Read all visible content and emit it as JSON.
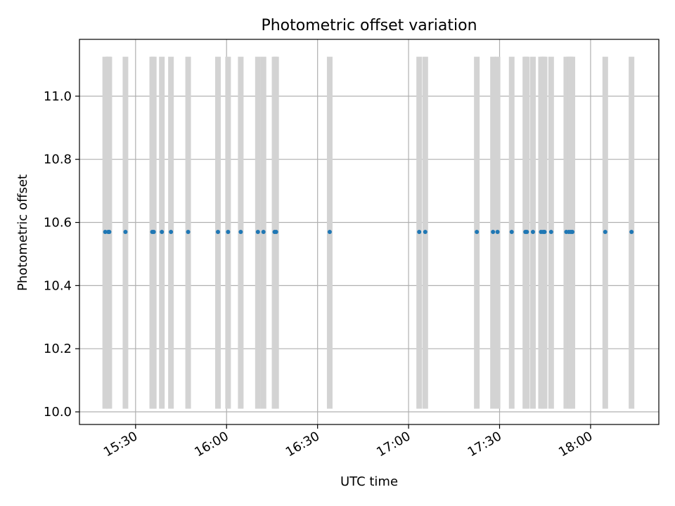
{
  "chart_data": {
    "type": "scatter",
    "title": "Photometric offset variation",
    "xlabel": "UTC time",
    "ylabel": "Photometric offset",
    "xlim": [
      "15:11:30",
      "18:22:30"
    ],
    "ylim": [
      9.96,
      11.18
    ],
    "x_ticks": [
      "15:30",
      "16:00",
      "16:30",
      "17:00",
      "17:30",
      "18:00"
    ],
    "y_ticks": [
      "10.0",
      "10.2",
      "10.4",
      "10.6",
      "10.8",
      "11.0"
    ],
    "grid": true,
    "band_range": [
      10.01,
      11.125
    ],
    "colors": {
      "points": "#1f77b4",
      "bands": "#d3d3d3",
      "grid": "#b0b0b0"
    },
    "bands": [
      "15:20:00",
      "15:21:00",
      "15:21:20",
      "15:26:40",
      "15:35:30",
      "15:36:00",
      "15:38:40",
      "15:41:40",
      "15:47:20",
      "15:57:10",
      "16:00:30",
      "16:04:40",
      "16:10:20",
      "16:12:10",
      "16:15:50",
      "16:16:20",
      "16:34:00",
      "17:03:30",
      "17:05:30",
      "17:22:30",
      "17:27:50",
      "17:29:20",
      "17:34:00",
      "17:38:30",
      "17:39:00",
      "17:41:00",
      "17:43:40",
      "17:44:20",
      "17:44:50",
      "17:47:00",
      "17:52:00",
      "17:52:50",
      "17:53:30",
      "17:54:00",
      "18:04:50",
      "18:13:30"
    ],
    "points": [
      {
        "x": "15:20:00",
        "y": 10.57
      },
      {
        "x": "15:21:00",
        "y": 10.57
      },
      {
        "x": "15:21:20",
        "y": 10.57
      },
      {
        "x": "15:26:40",
        "y": 10.57
      },
      {
        "x": "15:35:30",
        "y": 10.57
      },
      {
        "x": "15:36:00",
        "y": 10.57
      },
      {
        "x": "15:38:40",
        "y": 10.57
      },
      {
        "x": "15:41:40",
        "y": 10.57
      },
      {
        "x": "15:47:20",
        "y": 10.57
      },
      {
        "x": "15:57:10",
        "y": 10.57
      },
      {
        "x": "16:00:30",
        "y": 10.57
      },
      {
        "x": "16:04:40",
        "y": 10.57
      },
      {
        "x": "16:10:20",
        "y": 10.57
      },
      {
        "x": "16:12:10",
        "y": 10.57
      },
      {
        "x": "16:15:50",
        "y": 10.57
      },
      {
        "x": "16:16:20",
        "y": 10.57
      },
      {
        "x": "16:34:00",
        "y": 10.57
      },
      {
        "x": "17:03:30",
        "y": 10.57
      },
      {
        "x": "17:05:30",
        "y": 10.57
      },
      {
        "x": "17:22:30",
        "y": 10.57
      },
      {
        "x": "17:27:50",
        "y": 10.57
      },
      {
        "x": "17:29:20",
        "y": 10.57
      },
      {
        "x": "17:34:00",
        "y": 10.57
      },
      {
        "x": "17:38:30",
        "y": 10.57
      },
      {
        "x": "17:39:00",
        "y": 10.57
      },
      {
        "x": "17:41:00",
        "y": 10.57
      },
      {
        "x": "17:43:40",
        "y": 10.57
      },
      {
        "x": "17:44:20",
        "y": 10.57
      },
      {
        "x": "17:44:50",
        "y": 10.57
      },
      {
        "x": "17:47:00",
        "y": 10.57
      },
      {
        "x": "17:52:00",
        "y": 10.57
      },
      {
        "x": "17:52:50",
        "y": 10.57
      },
      {
        "x": "17:53:30",
        "y": 10.57
      },
      {
        "x": "17:54:00",
        "y": 10.57
      },
      {
        "x": "18:04:50",
        "y": 10.57
      },
      {
        "x": "18:13:30",
        "y": 10.57
      }
    ]
  }
}
